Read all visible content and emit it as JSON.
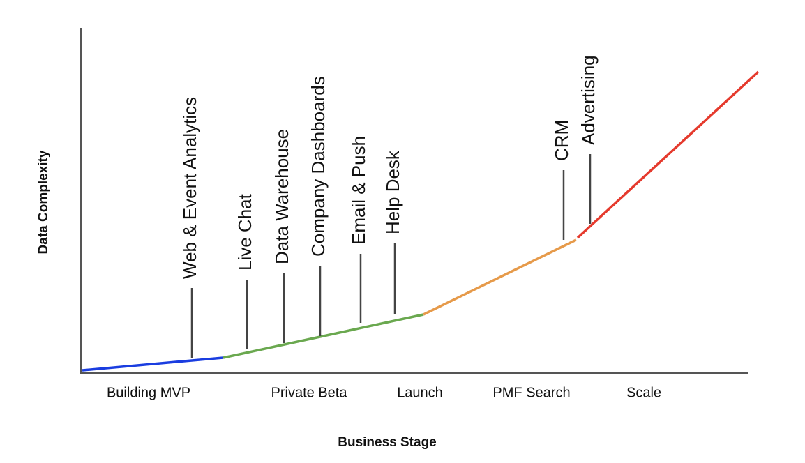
{
  "axes": {
    "x_label": "Business Stage",
    "y_label": "Data Complexity"
  },
  "stages": [
    "Building MVP",
    "Private Beta",
    "Launch",
    "PMF Search",
    "Scale"
  ],
  "tools": [
    {
      "label": "Web & Event Analytics"
    },
    {
      "label": "Live Chat"
    },
    {
      "label": "Data Warehouse"
    },
    {
      "label": "Company  Dashboards"
    },
    {
      "label": "Email & Push"
    },
    {
      "label": "Help Desk"
    },
    {
      "label": "CRM"
    },
    {
      "label": "Advertising"
    }
  ]
}
